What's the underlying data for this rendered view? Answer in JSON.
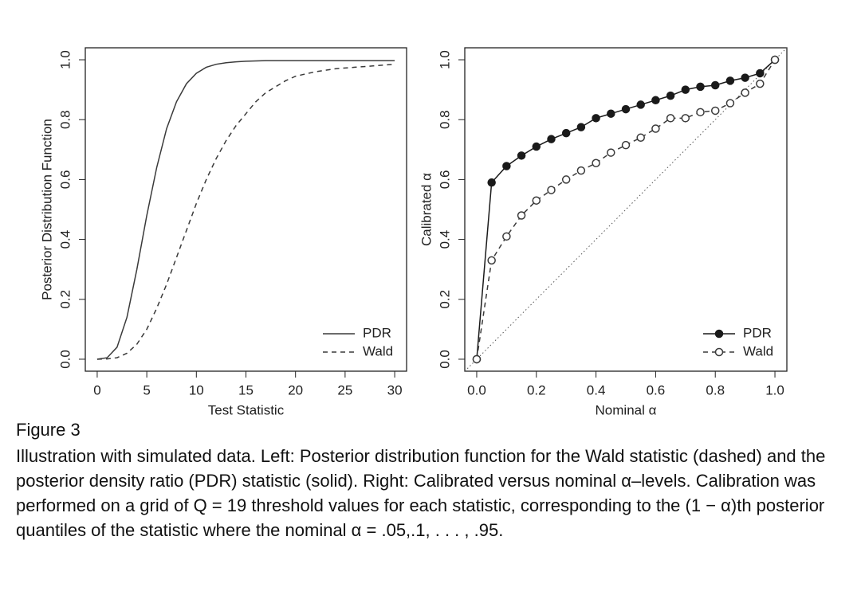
{
  "chart_data": [
    {
      "type": "line",
      "xlabel": "Test Statistic",
      "ylabel": "Posterior Distribution Function",
      "x": [
        0,
        1,
        2,
        3,
        4,
        5,
        6,
        7,
        8,
        9,
        10,
        11,
        12,
        13,
        14,
        15,
        16,
        17,
        18,
        19,
        20,
        22,
        24,
        26,
        28,
        30
      ],
      "series": [
        {
          "name": "PDR",
          "color": "#3a3a3a",
          "linestyle": "solid",
          "marker": "none",
          "values": [
            0,
            0.005,
            0.04,
            0.14,
            0.3,
            0.48,
            0.64,
            0.77,
            0.86,
            0.92,
            0.955,
            0.975,
            0.985,
            0.99,
            0.993,
            0.995,
            0.996,
            0.997,
            0.997,
            0.997,
            0.997,
            0.997,
            0.997,
            0.997,
            0.997,
            0.997
          ]
        },
        {
          "name": "Wald",
          "color": "#3a3a3a",
          "linestyle": "dashed",
          "marker": "none",
          "values": [
            0,
            0.001,
            0.005,
            0.02,
            0.05,
            0.1,
            0.17,
            0.25,
            0.34,
            0.43,
            0.52,
            0.6,
            0.67,
            0.73,
            0.78,
            0.82,
            0.86,
            0.89,
            0.91,
            0.93,
            0.945,
            0.96,
            0.97,
            0.975,
            0.98,
            0.985
          ]
        }
      ],
      "xlim": [
        -1.2,
        31.2
      ],
      "ylim": [
        -0.04,
        1.04
      ],
      "xticks": [
        0,
        5,
        10,
        15,
        20,
        25,
        30
      ],
      "yticks": [
        {
          "value": 0,
          "label": "0.0"
        },
        0.2,
        0.4,
        0.6,
        0.8,
        {
          "value": 1,
          "label": "1.0"
        }
      ],
      "legend": "bottom-right",
      "diagonal": false
    },
    {
      "type": "line",
      "xlabel": "Nominal α",
      "ylabel": "Calibrated α",
      "x": [
        0,
        0.05,
        0.1,
        0.15,
        0.2,
        0.25,
        0.3,
        0.35,
        0.4,
        0.45,
        0.5,
        0.55,
        0.6,
        0.65,
        0.7,
        0.75,
        0.8,
        0.85,
        0.9,
        0.95,
        1
      ],
      "series": [
        {
          "name": "PDR",
          "color": "#1a1a1a",
          "linestyle": "solid",
          "marker": "filled",
          "values": [
            0,
            0.59,
            0.645,
            0.68,
            0.71,
            0.735,
            0.755,
            0.775,
            0.805,
            0.82,
            0.835,
            0.85,
            0.865,
            0.88,
            0.9,
            0.91,
            0.915,
            0.93,
            0.94,
            0.955,
            1
          ]
        },
        {
          "name": "Wald",
          "color": "#3a3a3a",
          "linestyle": "dashed",
          "marker": "open",
          "values": [
            0,
            0.33,
            0.41,
            0.48,
            0.53,
            0.565,
            0.6,
            0.63,
            0.655,
            0.69,
            0.715,
            0.74,
            0.77,
            0.805,
            0.805,
            0.825,
            0.83,
            0.855,
            0.89,
            0.92,
            1
          ]
        }
      ],
      "xlim": [
        -0.04,
        1.04
      ],
      "ylim": [
        -0.04,
        1.04
      ],
      "xticks": [
        {
          "value": 0,
          "label": "0.0"
        },
        0.2,
        0.4,
        0.6,
        0.8,
        {
          "value": 1,
          "label": "1.0"
        }
      ],
      "yticks": [
        {
          "value": 0,
          "label": "0.0"
        },
        0.2,
        0.4,
        0.6,
        0.8,
        {
          "value": 1,
          "label": "1.0"
        }
      ],
      "legend": "bottom-right",
      "diagonal": true
    }
  ],
  "caption": {
    "label": "Figure 3",
    "text": "Illustration with simulated data. Left: Posterior distribution function for the Wald statistic (dashed) and the posterior density ratio (PDR) statistic (solid). Right: Calibrated versus nominal α–levels. Calibration was performed on a grid of Q = 19 threshold values for each statistic, corresponding to the (1 − α)th posterior quantiles of the statistic where the nominal α = .05,.1, . . . , .95."
  }
}
